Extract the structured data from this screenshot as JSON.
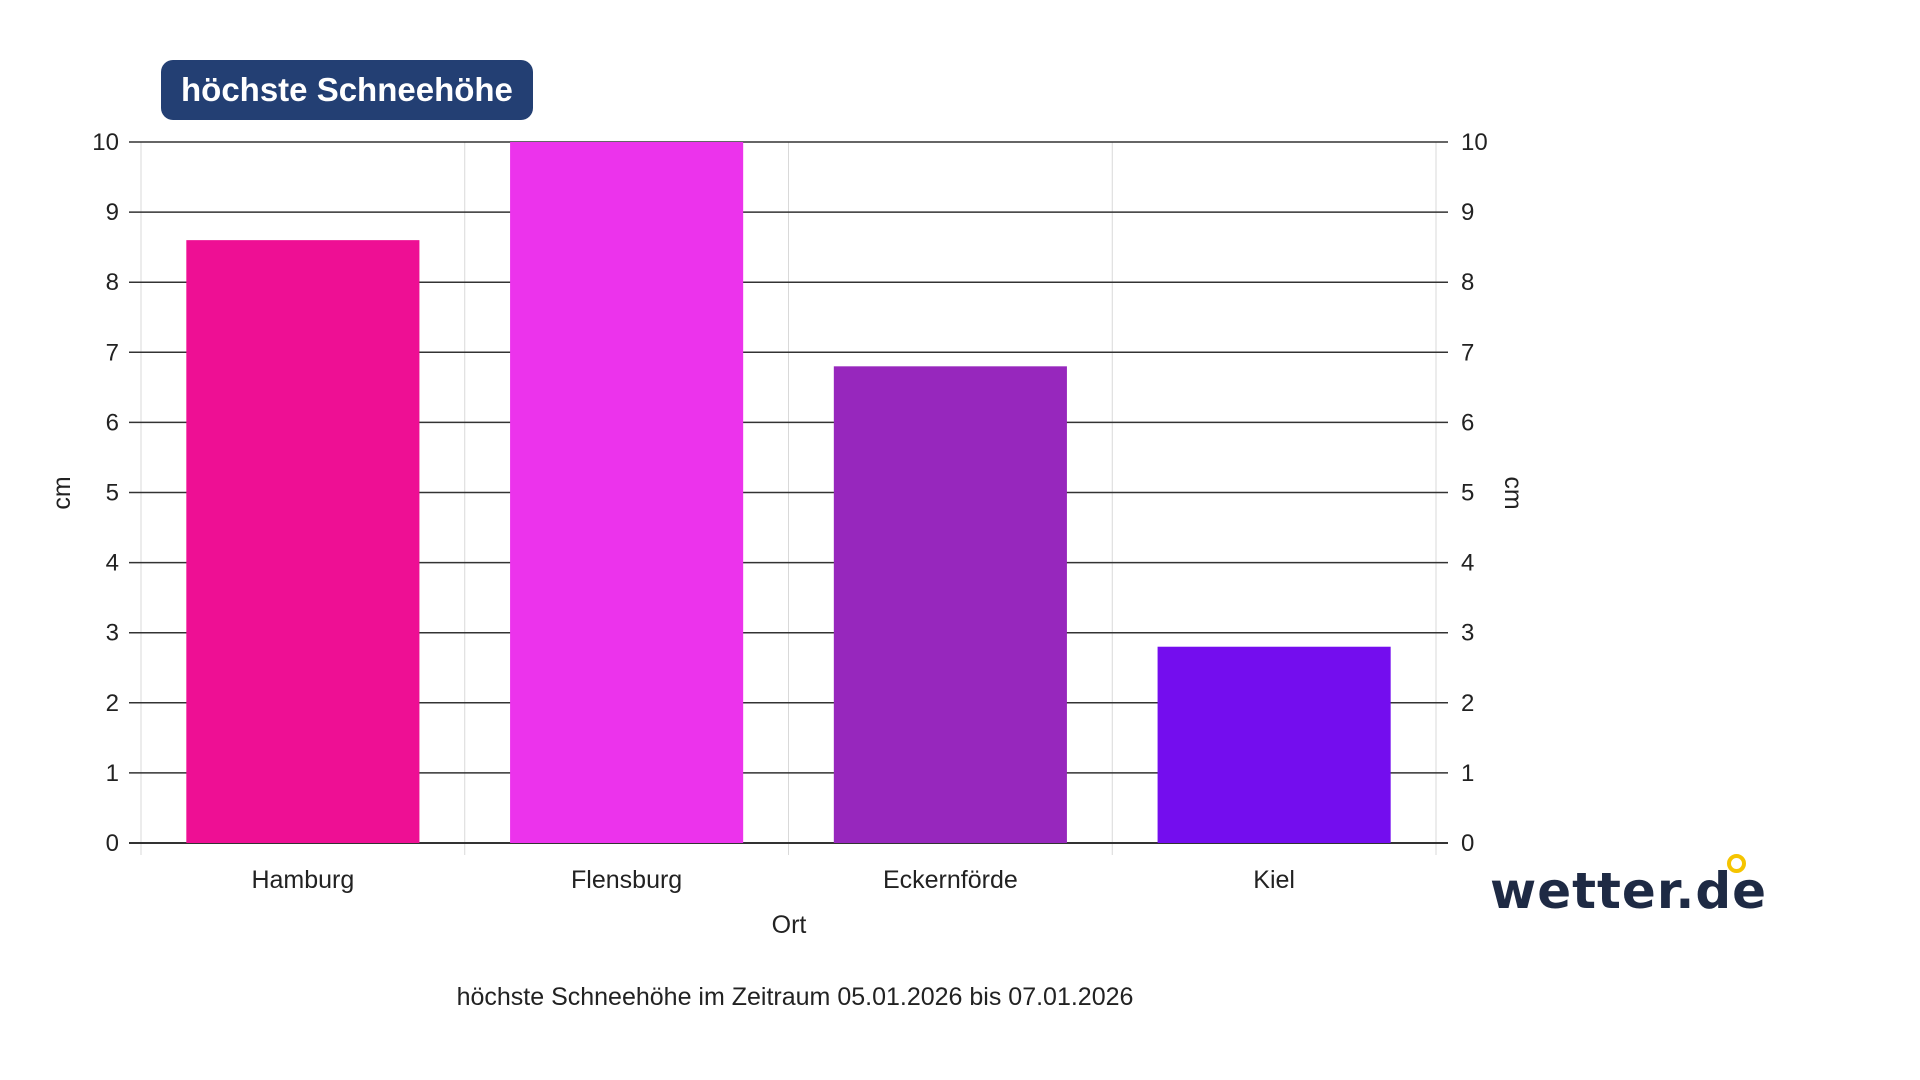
{
  "chart_data": {
    "type": "bar",
    "title": "höchste Schneehöhe",
    "categories": [
      "Hamburg",
      "Flensburg",
      "Eckernförde",
      "Kiel"
    ],
    "values": [
      8.6,
      10.0,
      6.8,
      2.8
    ],
    "colors": [
      "#ee0f94",
      "#ec33ec",
      "#9727bd",
      "#740dee"
    ],
    "xlabel": "Ort",
    "ylabel": "cm",
    "ylabel_right": "cm",
    "ylim": [
      0,
      10
    ],
    "yticks": [
      0,
      1,
      2,
      3,
      4,
      5,
      6,
      7,
      8,
      9,
      10
    ],
    "grid": true,
    "caption": "höchste Schneehöhe im Zeitraum 05.01.2026 bis 07.01.2026"
  },
  "branding": {
    "logo_text": "wetter.de",
    "logo_accent_color": "#f5c400"
  },
  "colors": {
    "title_badge_bg": "#233f73",
    "grid_line": "#333333"
  }
}
